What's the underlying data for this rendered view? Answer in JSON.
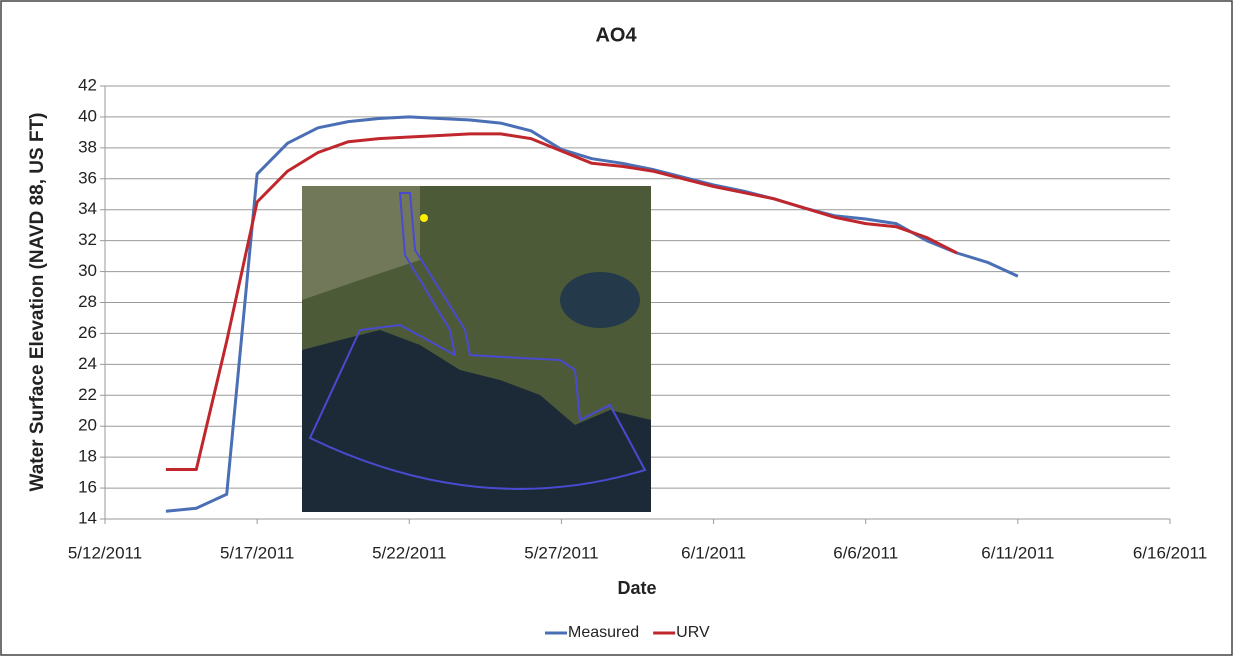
{
  "chart_data": {
    "type": "line",
    "title": "AO4",
    "x_label": "Date",
    "y_label": "Water Surface Elevation (NAVD 88, US FT)",
    "xlim": [
      "5/12/2011",
      "6/16/2011"
    ],
    "xticks": [
      "5/12/2011",
      "5/17/2011",
      "5/22/2011",
      "5/27/2011",
      "6/1/2011",
      "6/6/2011",
      "6/11/2011",
      "6/16/2011"
    ],
    "ylim": [
      14,
      42
    ],
    "yticks": [
      14,
      16,
      18,
      20,
      22,
      24,
      26,
      28,
      30,
      32,
      34,
      36,
      38,
      40,
      42
    ],
    "grid": true,
    "legend": "bottom",
    "x": [
      "5/14/2011",
      "5/15/2011",
      "5/16/2011",
      "5/17/2011",
      "5/18/2011",
      "5/19/2011",
      "5/20/2011",
      "5/21/2011",
      "5/22/2011",
      "5/23/2011",
      "5/24/2011",
      "5/25/2011",
      "5/26/2011",
      "5/27/2011",
      "5/28/2011",
      "5/29/2011",
      "5/30/2011",
      "5/31/2011",
      "6/1/2011",
      "6/2/2011",
      "6/3/2011",
      "6/4/2011",
      "6/5/2011",
      "6/6/2011",
      "6/7/2011",
      "6/8/2011",
      "6/9/2011",
      "6/10/2011",
      "6/11/2011"
    ],
    "series": [
      {
        "name": "Measured",
        "color": "#4a6fb5",
        "values": [
          14.5,
          14.7,
          15.6,
          36.3,
          38.3,
          39.3,
          39.7,
          39.9,
          40.0,
          39.9,
          39.8,
          39.6,
          39.1,
          37.9,
          37.3,
          37.0,
          36.6,
          36.1,
          35.6,
          35.2,
          34.7,
          34.1,
          33.6,
          33.4,
          33.1,
          32.0,
          31.2,
          30.6,
          29.7
        ]
      },
      {
        "name": "URV",
        "color": "#c0272d",
        "values": [
          17.2,
          17.2,
          25.5,
          34.5,
          36.5,
          37.7,
          38.4,
          38.6,
          38.7,
          38.8,
          38.9,
          38.9,
          38.6,
          37.8,
          37.0,
          36.8,
          36.5,
          36.0,
          35.5,
          35.1,
          34.7,
          34.1,
          33.5,
          33.1,
          32.9,
          32.2,
          31.2,
          null,
          null
        ]
      }
    ]
  }
}
